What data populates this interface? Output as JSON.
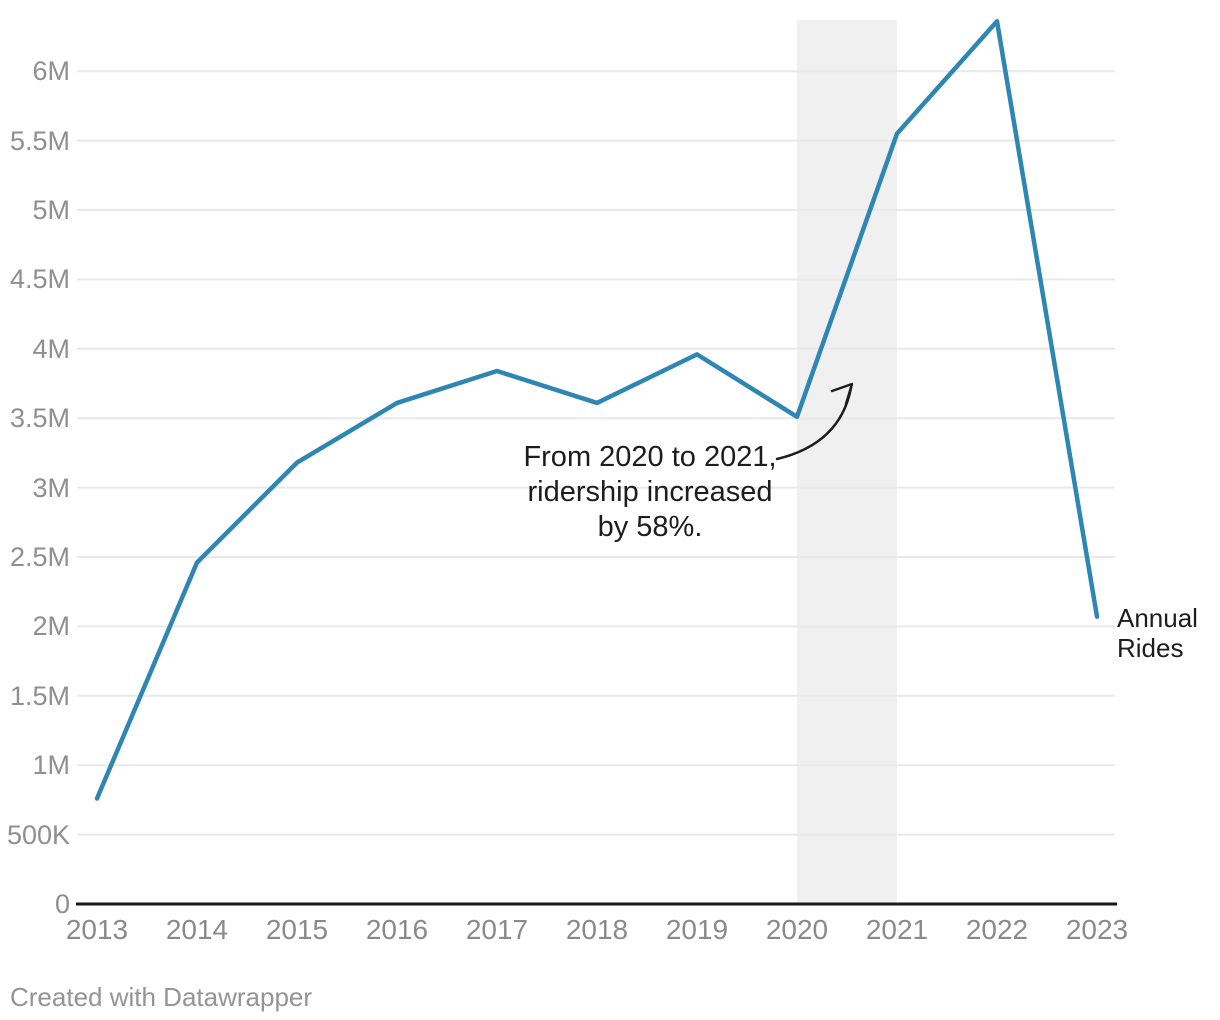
{
  "chart_data": {
    "type": "line",
    "title": "",
    "series_name": "Annual Rides",
    "x": [
      2013,
      2014,
      2015,
      2016,
      2017,
      2018,
      2019,
      2020,
      2021,
      2022,
      2023
    ],
    "values_millions": [
      0.76,
      2.46,
      3.18,
      3.61,
      3.84,
      3.61,
      3.96,
      3.51,
      5.55,
      6.36,
      2.07
    ],
    "y_ticks": [
      {
        "value": 0,
        "label": "0"
      },
      {
        "value": 0.5,
        "label": "500K"
      },
      {
        "value": 1,
        "label": "1M"
      },
      {
        "value": 1.5,
        "label": "1.5M"
      },
      {
        "value": 2,
        "label": "2M"
      },
      {
        "value": 2.5,
        "label": "2.5M"
      },
      {
        "value": 3,
        "label": "3M"
      },
      {
        "value": 3.5,
        "label": "3.5M"
      },
      {
        "value": 4,
        "label": "4M"
      },
      {
        "value": 4.5,
        "label": "4.5M"
      },
      {
        "value": 5,
        "label": "5M"
      },
      {
        "value": 5.5,
        "label": "5.5M"
      },
      {
        "value": 6,
        "label": "6M"
      }
    ],
    "ylim": [
      0,
      6.37
    ],
    "grid": true,
    "legend_position": "right-of-line-end",
    "highlight_range": {
      "from": 2020,
      "to": 2021
    },
    "annotation": {
      "lines": [
        "From 2020 to 2021,",
        "ridership increased",
        "by 58%."
      ]
    },
    "colors": {
      "line": "#2e86b2",
      "highlight_band": "#f0f0f0",
      "grid": "#e9e9e9",
      "axis": "#1a1a1a",
      "tick_label": "#8f8f8f",
      "annotation_text": "#1d1d1d"
    }
  },
  "footer": {
    "credit": "Created with Datawrapper"
  }
}
